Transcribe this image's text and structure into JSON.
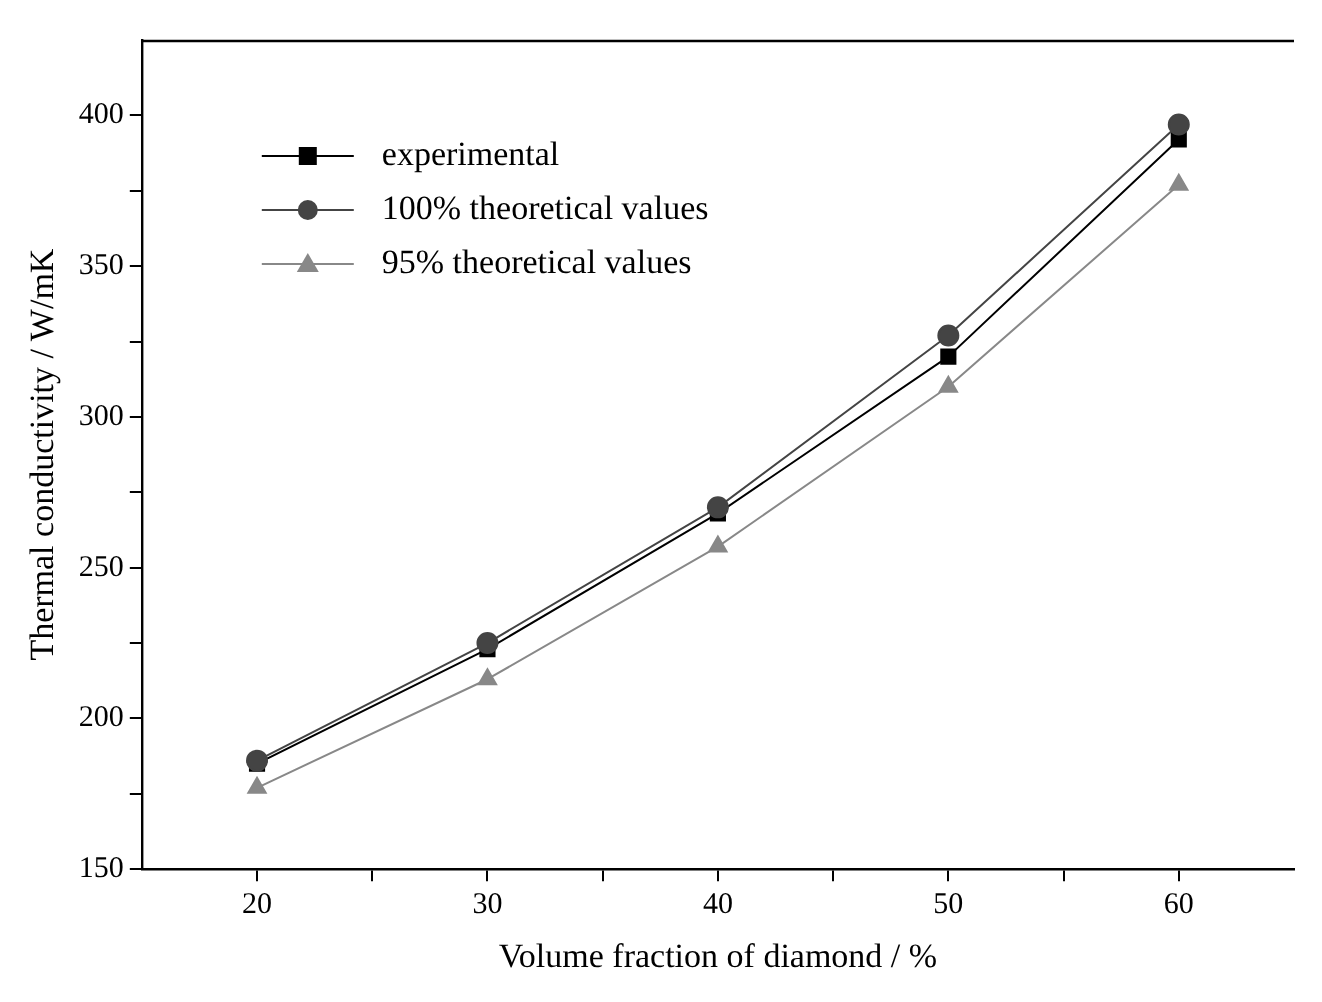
{
  "chart_data": {
    "type": "line",
    "xlabel": "Volume fraction of diamond / %",
    "ylabel": "Thermal conductivity / W/mK",
    "x": [
      20,
      30,
      40,
      50,
      60
    ],
    "series": [
      {
        "name": "experimental",
        "color": "#000000",
        "marker": "square",
        "values": [
          185,
          223,
          268,
          320,
          392
        ]
      },
      {
        "name": "100% theoretical values",
        "color": "#444444",
        "marker": "circle",
        "values": [
          186,
          225,
          270,
          327,
          397
        ]
      },
      {
        "name": "95% theoretical values",
        "color": "#888888",
        "marker": "triangle",
        "values": [
          177,
          213,
          257,
          310,
          377
        ]
      }
    ],
    "xlim": [
      15,
      65
    ],
    "xticks": [
      20,
      {
        "value": 25,
        "label": null
      },
      30,
      {
        "value": 35,
        "label": null
      },
      40,
      {
        "value": 45,
        "label": null
      },
      50,
      {
        "value": 55,
        "label": null
      },
      60
    ],
    "ylim": [
      150,
      425
    ],
    "yticks": [
      150,
      {
        "value": 175,
        "label": null
      },
      200,
      {
        "value": 225,
        "label": null
      },
      250,
      {
        "value": 275,
        "label": null
      },
      300,
      {
        "value": 325,
        "label": null
      },
      350,
      {
        "value": 375,
        "label": null
      },
      400
    ],
    "grid": false,
    "legend": "top left",
    "line_style": "solid"
  }
}
